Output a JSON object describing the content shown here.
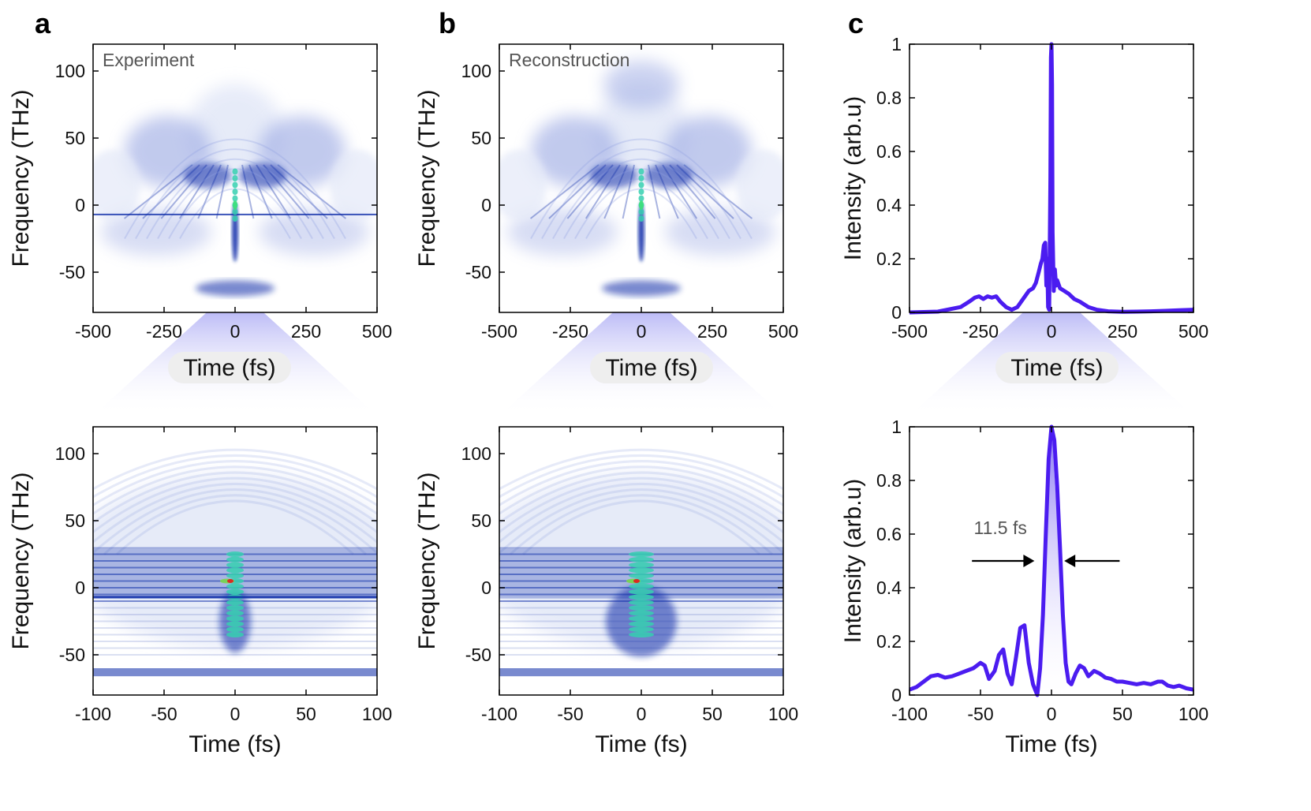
{
  "panel_labels": [
    "a",
    "b",
    "c"
  ],
  "colors": {
    "spectro_light": "#e4e9f8",
    "spectro_mid": "#8f9fe0",
    "spectro_dark": "#0b2aa8",
    "spectro_hot": "#36d0b0",
    "spectro_peak": "#e02020",
    "line": "#4b1cf0",
    "fan": "#c9c8f8",
    "time_pill": "#eeeeee"
  },
  "chart_data": [
    {
      "id": "a-top",
      "type": "heatmap",
      "inner_label": "Experiment",
      "xlabel": "Time (fs)",
      "ylabel": "Frequency (THz)",
      "xlim": [
        -500,
        500
      ],
      "ylim": [
        -80,
        120
      ],
      "xticks": [
        -500,
        -250,
        0,
        250,
        500
      ],
      "yticks": [
        -50,
        0,
        50,
        100
      ],
      "xtick_labels": [
        "-500",
        "-250",
        "0",
        "250",
        "500"
      ],
      "ytick_labels": [
        "-50",
        "0",
        "50",
        "100"
      ]
    },
    {
      "id": "b-top",
      "type": "heatmap",
      "inner_label": "Reconstruction",
      "xlabel": "Time (fs)",
      "ylabel": "Frequency (THz)",
      "xlim": [
        -500,
        500
      ],
      "ylim": [
        -80,
        120
      ],
      "xticks": [
        -500,
        -250,
        0,
        250,
        500
      ],
      "yticks": [
        -50,
        0,
        50,
        100
      ],
      "xtick_labels": [
        "-500",
        "-250",
        "0",
        "250",
        "500"
      ],
      "ytick_labels": [
        "-50",
        "0",
        "50",
        "100"
      ]
    },
    {
      "id": "c-top",
      "type": "line",
      "xlabel": "Time (fs)",
      "ylabel": "Intensity (arb.u)",
      "xlim": [
        -500,
        500
      ],
      "ylim": [
        0,
        1
      ],
      "xticks": [
        -500,
        -250,
        0,
        250,
        500
      ],
      "yticks": [
        0,
        0.2,
        0.4,
        0.6,
        0.8,
        1
      ],
      "xtick_labels": [
        "-500",
        "-250",
        "0",
        "250",
        "500"
      ],
      "ytick_labels": [
        "0",
        "0.2",
        "0.4",
        "0.6",
        "0.8",
        "1"
      ],
      "x": [
        -500,
        -400,
        -320,
        -290,
        -270,
        -255,
        -240,
        -225,
        -210,
        -195,
        -180,
        -160,
        -140,
        -120,
        -100,
        -80,
        -65,
        -55,
        -45,
        -38,
        -32,
        -27,
        -22,
        -18,
        -15,
        -12,
        -8,
        -4,
        -2,
        0,
        2,
        4,
        8,
        12,
        16,
        20,
        30,
        45,
        60,
        80,
        100,
        130,
        160,
        200,
        250,
        300,
        350,
        400,
        450,
        500
      ],
      "y": [
        0.0,
        0.003,
        0.02,
        0.04,
        0.055,
        0.06,
        0.05,
        0.06,
        0.055,
        0.06,
        0.04,
        0.02,
        0.01,
        0.02,
        0.05,
        0.08,
        0.09,
        0.11,
        0.15,
        0.18,
        0.2,
        0.25,
        0.26,
        0.1,
        0.2,
        0.02,
        0.01,
        0.5,
        0.95,
        1.0,
        0.85,
        0.3,
        0.08,
        0.16,
        0.1,
        0.12,
        0.09,
        0.08,
        0.07,
        0.05,
        0.04,
        0.02,
        0.01,
        0.004,
        0.002,
        0.003,
        0.004,
        0.006,
        0.008,
        0.01
      ]
    },
    {
      "id": "a-bottom",
      "type": "heatmap",
      "xlabel": "Time (fs)",
      "ylabel": "Frequency (THz)",
      "xlim": [
        -100,
        100
      ],
      "ylim": [
        -80,
        120
      ],
      "xticks": [
        -100,
        -50,
        0,
        50,
        100
      ],
      "yticks": [
        -50,
        0,
        50,
        100
      ],
      "xtick_labels": [
        "-100",
        "-50",
        "0",
        "50",
        "100"
      ],
      "ytick_labels": [
        "-50",
        "0",
        "50",
        "100"
      ]
    },
    {
      "id": "b-bottom",
      "type": "heatmap",
      "xlabel": "Time (fs)",
      "ylabel": "Frequency (THz)",
      "xlim": [
        -100,
        100
      ],
      "ylim": [
        -80,
        120
      ],
      "xticks": [
        -100,
        -50,
        0,
        50,
        100
      ],
      "yticks": [
        -50,
        0,
        50,
        100
      ],
      "xtick_labels": [
        "-100",
        "-50",
        "0",
        "50",
        "100"
      ],
      "ytick_labels": [
        "-50",
        "0",
        "50",
        "100"
      ]
    },
    {
      "id": "c-bottom",
      "type": "line",
      "xlabel": "Time (fs)",
      "ylabel": "Intensity (arb.u)",
      "xlim": [
        -100,
        100
      ],
      "ylim": [
        0,
        1
      ],
      "xticks": [
        -100,
        -50,
        0,
        50,
        100
      ],
      "yticks": [
        0,
        0.2,
        0.4,
        0.6,
        0.8,
        1
      ],
      "xtick_labels": [
        "-100",
        "-50",
        "0",
        "50",
        "100"
      ],
      "ytick_labels": [
        "0",
        "0.2",
        "0.4",
        "0.6",
        "0.8",
        "1"
      ],
      "annotation": "11.5 fs",
      "fwhm_fs": 11.5,
      "x": [
        -100,
        -95,
        -90,
        -85,
        -80,
        -75,
        -70,
        -65,
        -60,
        -55,
        -50,
        -47,
        -44,
        -40,
        -37,
        -34,
        -31,
        -28,
        -25,
        -22,
        -19,
        -16,
        -13,
        -10,
        -8,
        -6,
        -4,
        -2,
        0,
        2,
        4,
        6,
        8,
        10,
        12,
        14,
        17,
        20,
        23,
        26,
        30,
        34,
        38,
        42,
        46,
        50,
        55,
        60,
        65,
        70,
        75,
        78,
        82,
        86,
        90,
        95,
        100
      ],
      "y": [
        0.02,
        0.03,
        0.05,
        0.07,
        0.075,
        0.065,
        0.07,
        0.08,
        0.09,
        0.1,
        0.12,
        0.11,
        0.06,
        0.09,
        0.15,
        0.17,
        0.08,
        0.04,
        0.14,
        0.25,
        0.26,
        0.12,
        0.04,
        0.0,
        0.1,
        0.3,
        0.6,
        0.88,
        1.0,
        0.95,
        0.78,
        0.55,
        0.3,
        0.12,
        0.05,
        0.04,
        0.08,
        0.11,
        0.1,
        0.07,
        0.09,
        0.08,
        0.065,
        0.06,
        0.05,
        0.05,
        0.045,
        0.04,
        0.045,
        0.04,
        0.05,
        0.05,
        0.035,
        0.03,
        0.035,
        0.025,
        0.02
      ]
    }
  ]
}
